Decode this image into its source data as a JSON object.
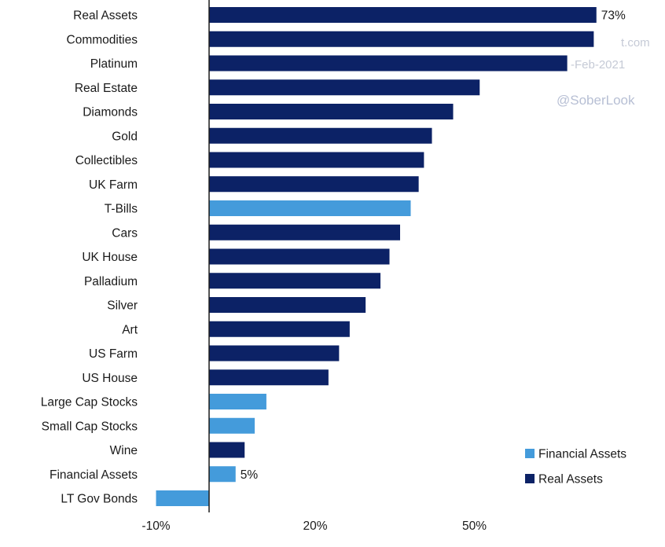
{
  "colors": {
    "real": "#0c2266",
    "financial": "#449bdb",
    "axis": "#1a1a1a",
    "watermark": "#b7bfd4"
  },
  "watermarks": {
    "handle": "@SoberLook",
    "site_fragment": "t.com",
    "date_fragment": "-Feb-2021"
  },
  "legend": {
    "position": "bottom-right",
    "items": [
      {
        "label": "Financial Assets",
        "type": "financial"
      },
      {
        "label": "Real Assets",
        "type": "real"
      }
    ]
  },
  "chart_data": {
    "type": "bar",
    "orientation": "horizontal",
    "xlim": [
      -10,
      80
    ],
    "x_ticks": [
      -10,
      20,
      50
    ],
    "x_tick_labels": [
      "-10%",
      "20%",
      "50%"
    ],
    "bars": [
      {
        "category": "Real Assets",
        "value": 73,
        "type": "real",
        "label": "73%"
      },
      {
        "category": "Commodities",
        "value": 72.5,
        "type": "real"
      },
      {
        "category": "Platinum",
        "value": 67.5,
        "type": "real"
      },
      {
        "category": "Real Estate",
        "value": 51,
        "type": "real"
      },
      {
        "category": "Diamonds",
        "value": 46,
        "type": "real"
      },
      {
        "category": "Gold",
        "value": 42,
        "type": "real"
      },
      {
        "category": "Collectibles",
        "value": 40.5,
        "type": "real"
      },
      {
        "category": "UK Farm",
        "value": 39.5,
        "type": "real"
      },
      {
        "category": "T-Bills",
        "value": 38,
        "type": "financial"
      },
      {
        "category": "Cars",
        "value": 36,
        "type": "real"
      },
      {
        "category": "UK House",
        "value": 34,
        "type": "real"
      },
      {
        "category": "Palladium",
        "value": 32.3,
        "type": "real"
      },
      {
        "category": "Silver",
        "value": 29.5,
        "type": "real"
      },
      {
        "category": "Art",
        "value": 26.5,
        "type": "real"
      },
      {
        "category": "US Farm",
        "value": 24.5,
        "type": "real"
      },
      {
        "category": "US House",
        "value": 22.5,
        "type": "real"
      },
      {
        "category": "Large Cap Stocks",
        "value": 10.8,
        "type": "financial"
      },
      {
        "category": "Small Cap Stocks",
        "value": 8.6,
        "type": "financial"
      },
      {
        "category": "Wine",
        "value": 6.7,
        "type": "real"
      },
      {
        "category": "Financial Assets",
        "value": 5,
        "type": "financial",
        "label": "5%"
      },
      {
        "category": "LT Gov Bonds",
        "value": -10,
        "type": "financial"
      }
    ]
  }
}
